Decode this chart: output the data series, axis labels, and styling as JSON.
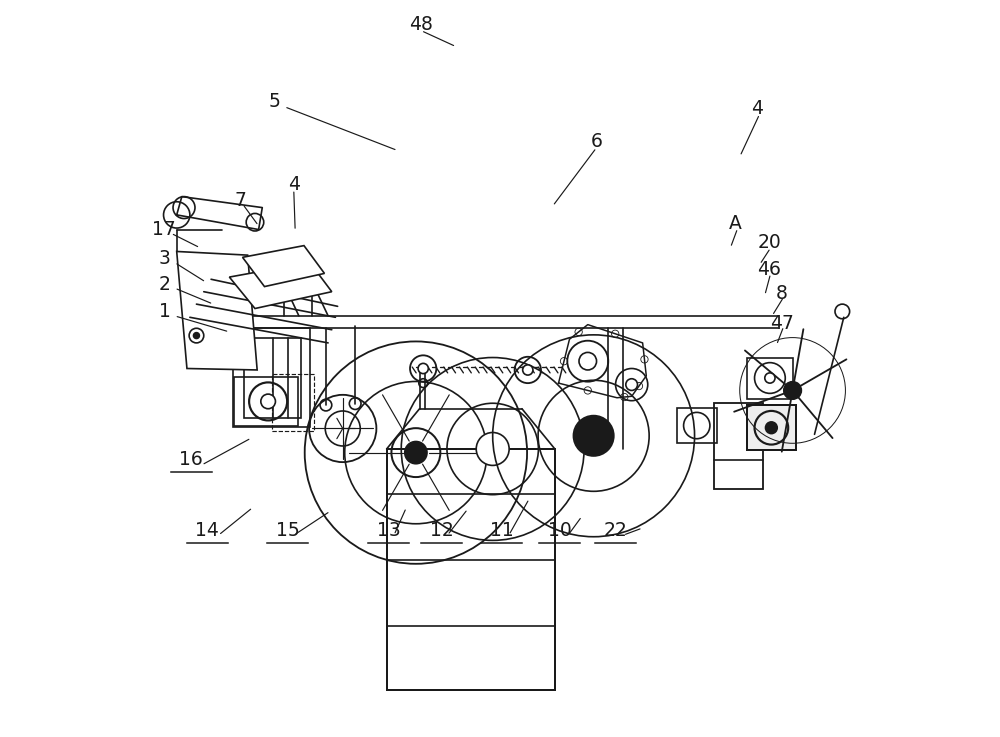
{
  "bg_color": "#ffffff",
  "line_color": "#1a1a1a",
  "lw": 1.2,
  "fig_width": 10.0,
  "fig_height": 7.37
}
